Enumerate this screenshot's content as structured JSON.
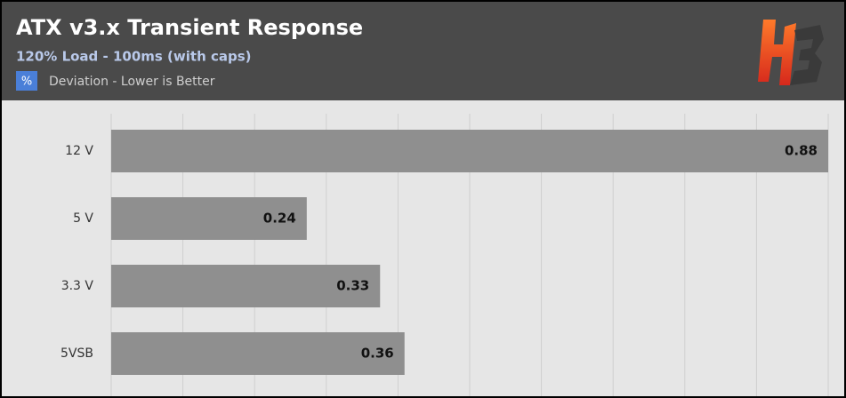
{
  "chart_data": {
    "type": "bar",
    "orientation": "horizontal",
    "title": "ATX v3.x Transient Response",
    "subtitle": "120% Load - 100ms (with caps)",
    "legend_symbol": "%",
    "categories": [
      "12 V",
      "5 V",
      "3.3 V",
      "5VSB"
    ],
    "series": [
      {
        "name": "Deviation - Lower is Better",
        "color": "#4a7fd8",
        "bar_color": "#8f8f8f",
        "values": [
          0.88,
          0.24,
          0.33,
          0.36
        ]
      }
    ],
    "xlim": [
      0,
      0.88
    ],
    "xticks": [
      0,
      0.088,
      0.176,
      0.264,
      0.352,
      0.44,
      0.528,
      0.616,
      0.704,
      0.792,
      0.88
    ],
    "grid": true
  }
}
